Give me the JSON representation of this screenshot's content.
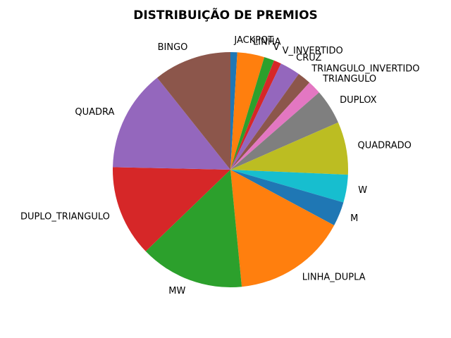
{
  "chart_data": {
    "type": "pie",
    "title": "DISTRIBUIÇÃO DE PREMIOS",
    "start_angle_deg": 90,
    "direction": "clockwise",
    "slices": [
      {
        "label": "JACKPOT",
        "value": 1.0,
        "color": "#1f77b4"
      },
      {
        "label": "LINHA",
        "value": 4.0,
        "color": "#ff7f0e"
      },
      {
        "label": "V",
        "value": 1.5,
        "color": "#2ca02c"
      },
      {
        "label": "V_INVERTIDO",
        "value": 1.1,
        "color": "#d62728"
      },
      {
        "label": "CRUZ",
        "value": 3.0,
        "color": "#9467bd"
      },
      {
        "label": "TRIANGULO_INVERTIDO",
        "value": 2.0,
        "color": "#8c564b"
      },
      {
        "label": "TRIANGULO",
        "value": 2.0,
        "color": "#e377c2"
      },
      {
        "label": "DUPLOX",
        "value": 5.2,
        "color": "#7f7f7f"
      },
      {
        "label": "QUADRADO",
        "value": 7.8,
        "color": "#bcbd22"
      },
      {
        "label": "W",
        "value": 4.1,
        "color": "#17becf"
      },
      {
        "label": "M",
        "value": 3.6,
        "color": "#1f77b4"
      },
      {
        "label": "LINHA_DUPLA",
        "value": 16.8,
        "color": "#ff7f0e"
      },
      {
        "label": "MW",
        "value": 15.4,
        "color": "#2ca02c"
      },
      {
        "label": "DUPLO_TRIANGULO",
        "value": 13.5,
        "color": "#d62728"
      },
      {
        "label": "QUADRA",
        "value": 15.0,
        "color": "#9467bd"
      },
      {
        "label": "BINGO",
        "value": 11.5,
        "color": "#8c564b"
      }
    ]
  }
}
